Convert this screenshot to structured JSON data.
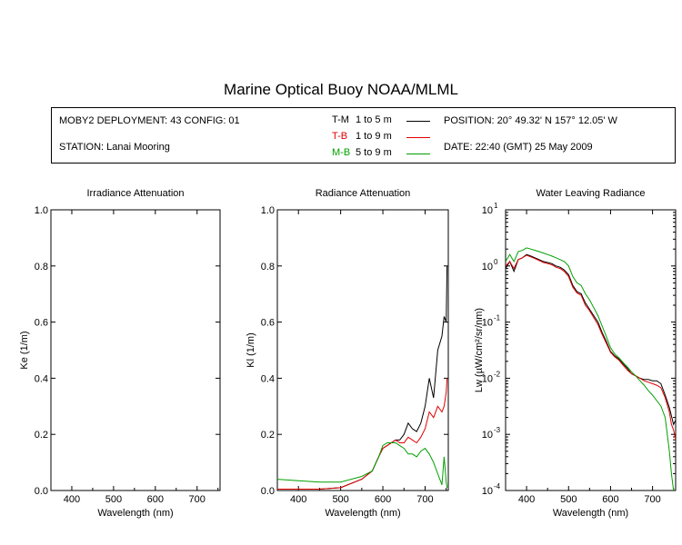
{
  "header": {
    "title": "Marine Optical Buoy NOAA/MLML",
    "deployment": "MOBY2 DEPLOYMENT: 43 CONFIG: 01",
    "station": "STATION: Lanai Mooring",
    "position": "POSITION: 20° 49.32' N   157° 12.05' W",
    "date": "DATE: 22:40 (GMT) 25 May 2009"
  },
  "legend": [
    {
      "code": "T-M",
      "range": "1 to 5  m",
      "color": "#000000"
    },
    {
      "code": "T-B",
      "range": "1 to 9  m",
      "color": "#e00000"
    },
    {
      "code": "M-B",
      "range": "5 to 9  m",
      "color": "#00a000"
    }
  ],
  "chart_data": [
    {
      "type": "line",
      "title": "Irradiance Attenuation",
      "xlabel": "Wavelength (nm)",
      "ylabel": "Ke  (1/m)",
      "xlim": [
        350,
        755
      ],
      "ylim": [
        0,
        1.0
      ],
      "xticks": [
        400,
        500,
        600,
        700
      ],
      "yticks": [
        0.0,
        0.2,
        0.4,
        0.6,
        0.8,
        1.0
      ],
      "ytick_labels": [
        "0.0",
        "0.2",
        "0.4",
        "0.6",
        "0.8",
        "1.0"
      ],
      "series": []
    },
    {
      "type": "line",
      "title": "Radiance Attenuation",
      "xlabel": "Wavelength (nm)",
      "ylabel": "Kl  (1/m)",
      "xlim": [
        350,
        755
      ],
      "ylim": [
        0,
        1.0
      ],
      "xticks": [
        400,
        500,
        600,
        700
      ],
      "yticks": [
        0.0,
        0.2,
        0.4,
        0.6,
        0.8,
        1.0
      ],
      "ytick_labels": [
        "0.0",
        "0.2",
        "0.4",
        "0.6",
        "0.8",
        "1.0"
      ],
      "series": [
        {
          "legend": "T-M",
          "color": "#000000",
          "x": [
            350,
            400,
            450,
            500,
            550,
            575,
            590,
            600,
            610,
            620,
            630,
            640,
            650,
            660,
            670,
            680,
            690,
            700,
            710,
            720,
            730,
            740,
            745,
            750,
            752
          ],
          "y": [
            0.005,
            0.005,
            0.005,
            0.01,
            0.04,
            0.07,
            0.12,
            0.15,
            0.16,
            0.17,
            0.18,
            0.18,
            0.2,
            0.24,
            0.22,
            0.21,
            0.24,
            0.3,
            0.4,
            0.33,
            0.5,
            0.55,
            0.62,
            0.6,
            0.8
          ]
        },
        {
          "legend": "T-B",
          "color": "#e00000",
          "x": [
            350,
            400,
            450,
            500,
            550,
            575,
            590,
            600,
            610,
            620,
            630,
            640,
            650,
            660,
            670,
            680,
            690,
            700,
            710,
            720,
            730,
            740,
            745,
            750,
            752
          ],
          "y": [
            0.005,
            0.005,
            0.005,
            0.01,
            0.04,
            0.07,
            0.12,
            0.15,
            0.16,
            0.17,
            0.18,
            0.17,
            0.17,
            0.19,
            0.18,
            0.17,
            0.19,
            0.22,
            0.28,
            0.26,
            0.3,
            0.28,
            0.3,
            0.35,
            0.4
          ]
        },
        {
          "legend": "M-B",
          "color": "#00a000",
          "x": [
            350,
            400,
            450,
            500,
            550,
            575,
            590,
            600,
            610,
            620,
            630,
            640,
            650,
            660,
            670,
            680,
            690,
            700,
            710,
            720,
            730,
            740,
            745,
            750,
            752
          ],
          "y": [
            0.04,
            0.035,
            0.03,
            0.03,
            0.05,
            0.07,
            0.12,
            0.16,
            0.17,
            0.17,
            0.17,
            0.16,
            0.15,
            0.13,
            0.13,
            0.12,
            0.14,
            0.15,
            0.13,
            0.1,
            0.06,
            0.02,
            0.12,
            0.03,
            0.01
          ]
        }
      ]
    },
    {
      "type": "line",
      "title": "Water Leaving Radiance",
      "xlabel": "Wavelength (nm)",
      "ylabel": "Lw  (µW/cm²/sr/nm)",
      "xlim": [
        350,
        755
      ],
      "ylim": [
        0.0001,
        10
      ],
      "log_y": true,
      "xticks": [
        400,
        500,
        600,
        700
      ],
      "yticks": [
        0.0001,
        0.001,
        0.01,
        0.1,
        1,
        10
      ],
      "ytick_labels": [
        [
          "10",
          "-4"
        ],
        [
          "10",
          "-3"
        ],
        [
          "10",
          "-2"
        ],
        [
          "10",
          "-1"
        ],
        [
          "10",
          "0"
        ],
        [
          "10",
          "1"
        ]
      ],
      "series": [
        {
          "legend": "T-M",
          "color": "#000000",
          "x": [
            350,
            360,
            370,
            380,
            390,
            400,
            410,
            420,
            430,
            440,
            450,
            460,
            470,
            480,
            490,
            500,
            510,
            520,
            530,
            540,
            550,
            560,
            570,
            580,
            590,
            600,
            610,
            620,
            630,
            640,
            650,
            660,
            670,
            680,
            690,
            700,
            710,
            720,
            730,
            740,
            750,
            755
          ],
          "y": [
            0.9,
            1.2,
            0.8,
            1.3,
            1.4,
            1.6,
            1.5,
            1.4,
            1.3,
            1.2,
            1.15,
            1.1,
            1.0,
            0.95,
            0.85,
            0.7,
            0.45,
            0.35,
            0.32,
            0.22,
            0.17,
            0.13,
            0.1,
            0.065,
            0.045,
            0.03,
            0.025,
            0.022,
            0.018,
            0.015,
            0.012,
            0.011,
            0.01,
            0.0095,
            0.0095,
            0.009,
            0.009,
            0.008,
            0.005,
            0.003,
            0.0015,
            0.0018
          ]
        },
        {
          "legend": "T-B",
          "color": "#e00000",
          "x": [
            350,
            360,
            370,
            380,
            390,
            400,
            410,
            420,
            430,
            440,
            450,
            460,
            470,
            480,
            490,
            500,
            510,
            520,
            530,
            540,
            550,
            560,
            570,
            580,
            590,
            600,
            610,
            620,
            630,
            640,
            650,
            660,
            670,
            680,
            690,
            700,
            710,
            720,
            730,
            740,
            745,
            750,
            755
          ],
          "y": [
            1.0,
            1.2,
            0.9,
            1.3,
            1.4,
            1.55,
            1.45,
            1.35,
            1.25,
            1.15,
            1.1,
            1.05,
            0.95,
            0.9,
            0.8,
            0.65,
            0.42,
            0.33,
            0.3,
            0.2,
            0.16,
            0.12,
            0.09,
            0.06,
            0.042,
            0.029,
            0.024,
            0.021,
            0.017,
            0.014,
            0.012,
            0.011,
            0.01,
            0.009,
            0.0085,
            0.008,
            0.0075,
            0.0068,
            0.0045,
            0.0025,
            0.0015,
            0.0012,
            0.0008
          ]
        },
        {
          "legend": "M-B",
          "color": "#00a000",
          "x": [
            350,
            360,
            370,
            380,
            390,
            400,
            410,
            420,
            430,
            440,
            450,
            460,
            470,
            480,
            490,
            500,
            510,
            520,
            530,
            540,
            550,
            560,
            570,
            580,
            590,
            600,
            610,
            620,
            630,
            640,
            650,
            660,
            670,
            680,
            690,
            700,
            710,
            720,
            730,
            740,
            745,
            750
          ],
          "y": [
            1.2,
            1.6,
            1.2,
            1.8,
            1.9,
            2.1,
            2.0,
            1.9,
            1.8,
            1.7,
            1.6,
            1.5,
            1.4,
            1.3,
            1.2,
            1.0,
            0.65,
            0.5,
            0.45,
            0.32,
            0.25,
            0.18,
            0.13,
            0.085,
            0.055,
            0.035,
            0.027,
            0.023,
            0.019,
            0.016,
            0.013,
            0.011,
            0.009,
            0.0075,
            0.006,
            0.005,
            0.004,
            0.0032,
            0.002,
            0.0005,
            0.0002,
            0.0001
          ]
        }
      ]
    }
  ]
}
